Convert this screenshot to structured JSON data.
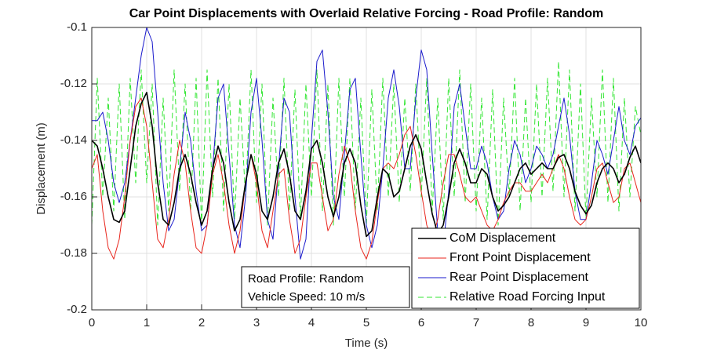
{
  "chart_data": {
    "type": "line",
    "title": "Car Point Displacements with Overlaid Relative Forcing - Road Profile: Random",
    "xlabel": "Time (s)",
    "ylabel": "Displacement (m)",
    "xlim": [
      0,
      10
    ],
    "ylim": [
      -0.2,
      -0.1
    ],
    "xticks": [
      0,
      1,
      2,
      3,
      4,
      5,
      6,
      7,
      8,
      9,
      10
    ],
    "yticks": [
      -0.2,
      -0.18,
      -0.16,
      -0.14,
      -0.12,
      -0.1
    ],
    "grid": true,
    "legend": "southeast",
    "annotation": [
      "Road Profile: Random",
      "Vehicle Speed: 10 m/s"
    ],
    "x": [
      0,
      0.1,
      0.2,
      0.3,
      0.4,
      0.5,
      0.6,
      0.7,
      0.8,
      0.9,
      1,
      1.1,
      1.2,
      1.3,
      1.4,
      1.5,
      1.6,
      1.7,
      1.8,
      1.9,
      2,
      2.1,
      2.2,
      2.3,
      2.4,
      2.5,
      2.6,
      2.7,
      2.8,
      2.9,
      3,
      3.1,
      3.2,
      3.3,
      3.4,
      3.5,
      3.6,
      3.7,
      3.8,
      3.9,
      4,
      4.1,
      4.2,
      4.3,
      4.4,
      4.5,
      4.6,
      4.7,
      4.8,
      4.9,
      5,
      5.1,
      5.2,
      5.3,
      5.4,
      5.5,
      5.6,
      5.7,
      5.8,
      5.9,
      6,
      6.1,
      6.2,
      6.3,
      6.4,
      6.5,
      6.6,
      6.7,
      6.8,
      6.9,
      7,
      7.1,
      7.2,
      7.3,
      7.4,
      7.5,
      7.6,
      7.7,
      7.8,
      7.9,
      8,
      8.1,
      8.2,
      8.3,
      8.4,
      8.5,
      8.6,
      8.7,
      8.8,
      8.9,
      9,
      9.1,
      9.2,
      9.3,
      9.4,
      9.5,
      9.6,
      9.7,
      9.8,
      9.9,
      10
    ],
    "series": [
      {
        "name": "CoM Displacement",
        "color": "#000000",
        "linestyle": "solid",
        "width": 1.6,
        "values": [
          -0.14,
          -0.142,
          -0.15,
          -0.16,
          -0.168,
          -0.169,
          -0.165,
          -0.15,
          -0.135,
          -0.127,
          -0.123,
          -0.135,
          -0.155,
          -0.168,
          -0.17,
          -0.162,
          -0.15,
          -0.145,
          -0.152,
          -0.162,
          -0.17,
          -0.165,
          -0.15,
          -0.142,
          -0.148,
          -0.162,
          -0.172,
          -0.168,
          -0.155,
          -0.145,
          -0.152,
          -0.165,
          -0.168,
          -0.16,
          -0.148,
          -0.143,
          -0.152,
          -0.165,
          -0.168,
          -0.158,
          -0.143,
          -0.14,
          -0.148,
          -0.16,
          -0.167,
          -0.16,
          -0.148,
          -0.143,
          -0.148,
          -0.163,
          -0.174,
          -0.172,
          -0.16,
          -0.15,
          -0.152,
          -0.16,
          -0.158,
          -0.15,
          -0.142,
          -0.138,
          -0.143,
          -0.155,
          -0.166,
          -0.173,
          -0.17,
          -0.16,
          -0.148,
          -0.143,
          -0.148,
          -0.155,
          -0.155,
          -0.15,
          -0.152,
          -0.16,
          -0.165,
          -0.163,
          -0.16,
          -0.155,
          -0.15,
          -0.148,
          -0.152,
          -0.15,
          -0.148,
          -0.15,
          -0.15,
          -0.146,
          -0.145,
          -0.15,
          -0.158,
          -0.163,
          -0.166,
          -0.163,
          -0.155,
          -0.15,
          -0.148,
          -0.15,
          -0.155,
          -0.152,
          -0.146,
          -0.142,
          -0.148
        ]
      },
      {
        "name": "Front Point Displacement",
        "color": "#e8251c",
        "linestyle": "solid",
        "width": 1,
        "values": [
          -0.15,
          -0.145,
          -0.165,
          -0.178,
          -0.182,
          -0.175,
          -0.16,
          -0.14,
          -0.128,
          -0.125,
          -0.135,
          -0.155,
          -0.175,
          -0.178,
          -0.168,
          -0.152,
          -0.14,
          -0.148,
          -0.165,
          -0.178,
          -0.18,
          -0.17,
          -0.152,
          -0.145,
          -0.155,
          -0.17,
          -0.18,
          -0.172,
          -0.155,
          -0.145,
          -0.155,
          -0.172,
          -0.178,
          -0.165,
          -0.152,
          -0.15,
          -0.168,
          -0.18,
          -0.175,
          -0.16,
          -0.148,
          -0.148,
          -0.16,
          -0.172,
          -0.168,
          -0.152,
          -0.142,
          -0.148,
          -0.165,
          -0.178,
          -0.182,
          -0.176,
          -0.162,
          -0.15,
          -0.148,
          -0.15,
          -0.145,
          -0.138,
          -0.135,
          -0.145,
          -0.158,
          -0.17,
          -0.175,
          -0.168,
          -0.155,
          -0.145,
          -0.145,
          -0.152,
          -0.16,
          -0.162,
          -0.16,
          -0.165,
          -0.17,
          -0.172,
          -0.168,
          -0.162,
          -0.158,
          -0.155,
          -0.155,
          -0.158,
          -0.158,
          -0.155,
          -0.152,
          -0.155,
          -0.15,
          -0.145,
          -0.15,
          -0.16,
          -0.168,
          -0.17,
          -0.168,
          -0.16,
          -0.15,
          -0.148,
          -0.155,
          -0.162,
          -0.16,
          -0.15,
          -0.148,
          -0.155,
          -0.162
        ]
      },
      {
        "name": "Rear Point Displacement",
        "color": "#1a1acc",
        "linestyle": "solid",
        "width": 1,
        "values": [
          -0.133,
          -0.133,
          -0.13,
          -0.14,
          -0.155,
          -0.162,
          -0.155,
          -0.14,
          -0.125,
          -0.11,
          -0.1,
          -0.105,
          -0.13,
          -0.155,
          -0.172,
          -0.168,
          -0.15,
          -0.13,
          -0.14,
          -0.158,
          -0.172,
          -0.17,
          -0.15,
          -0.125,
          -0.12,
          -0.145,
          -0.17,
          -0.178,
          -0.16,
          -0.13,
          -0.118,
          -0.14,
          -0.168,
          -0.175,
          -0.15,
          -0.125,
          -0.13,
          -0.16,
          -0.182,
          -0.175,
          -0.14,
          -0.112,
          -0.108,
          -0.13,
          -0.16,
          -0.168,
          -0.145,
          -0.122,
          -0.118,
          -0.145,
          -0.17,
          -0.178,
          -0.17,
          -0.15,
          -0.125,
          -0.115,
          -0.128,
          -0.15,
          -0.15,
          -0.125,
          -0.108,
          -0.115,
          -0.145,
          -0.172,
          -0.178,
          -0.158,
          -0.128,
          -0.12,
          -0.135,
          -0.15,
          -0.15,
          -0.142,
          -0.148,
          -0.16,
          -0.168,
          -0.165,
          -0.15,
          -0.14,
          -0.145,
          -0.155,
          -0.15,
          -0.142,
          -0.145,
          -0.15,
          -0.145,
          -0.135,
          -0.125,
          -0.138,
          -0.158,
          -0.168,
          -0.168,
          -0.155,
          -0.14,
          -0.145,
          -0.152,
          -0.14,
          -0.128,
          -0.14,
          -0.145,
          -0.135,
          -0.132
        ]
      },
      {
        "name": "Relative Road Forcing Input",
        "color": "#33e633",
        "linestyle": "dashed",
        "width": 1,
        "values": [
          -0.17,
          -0.118,
          -0.16,
          -0.125,
          -0.165,
          -0.12,
          -0.168,
          -0.118,
          -0.155,
          -0.115,
          -0.155,
          -0.12,
          -0.17,
          -0.125,
          -0.165,
          -0.115,
          -0.158,
          -0.12,
          -0.165,
          -0.118,
          -0.17,
          -0.115,
          -0.16,
          -0.118,
          -0.165,
          -0.12,
          -0.168,
          -0.125,
          -0.16,
          -0.115,
          -0.162,
          -0.12,
          -0.17,
          -0.125,
          -0.16,
          -0.118,
          -0.165,
          -0.122,
          -0.168,
          -0.12,
          -0.16,
          -0.115,
          -0.165,
          -0.12,
          -0.17,
          -0.118,
          -0.16,
          -0.118,
          -0.165,
          -0.125,
          -0.17,
          -0.122,
          -0.165,
          -0.118,
          -0.16,
          -0.12,
          -0.162,
          -0.125,
          -0.158,
          -0.12,
          -0.16,
          -0.118,
          -0.165,
          -0.125,
          -0.168,
          -0.118,
          -0.16,
          -0.115,
          -0.162,
          -0.12,
          -0.165,
          -0.125,
          -0.168,
          -0.122,
          -0.17,
          -0.125,
          -0.16,
          -0.118,
          -0.165,
          -0.125,
          -0.162,
          -0.12,
          -0.16,
          -0.118,
          -0.158,
          -0.112,
          -0.16,
          -0.115,
          -0.165,
          -0.12,
          -0.168,
          -0.125,
          -0.16,
          -0.115,
          -0.162,
          -0.118,
          -0.165,
          -0.125,
          -0.16,
          -0.128,
          -0.138
        ]
      }
    ]
  }
}
